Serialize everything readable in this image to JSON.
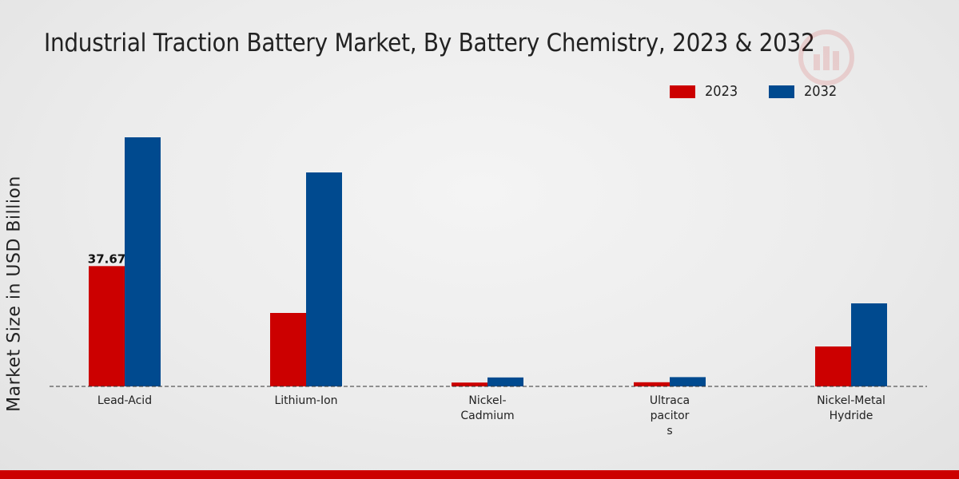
{
  "colors": {
    "series_2023": "#cc0000",
    "series_2032": "#004a8f",
    "footer": "#cc0000"
  },
  "watermark_icon": "bar-chart-logo-icon",
  "chart_data": {
    "type": "bar",
    "title": "Industrial Traction Battery Market, By Battery Chemistry, 2023 & 2032",
    "xlabel": "",
    "ylabel": "Market Size in USD Billion",
    "categories": [
      "Lead-Acid",
      "Lithium-Ion",
      "Nickel-Cadmium",
      "Ultracapacitors",
      "Nickel-Metal Hydride"
    ],
    "category_label_lines": [
      [
        "Lead-Acid"
      ],
      [
        "Lithium-Ion"
      ],
      [
        "Nickel-",
        "Cadmium"
      ],
      [
        "Ultraca",
        "pacitor",
        "s"
      ],
      [
        "Nickel-Metal",
        "Hydride"
      ]
    ],
    "series": [
      {
        "name": "2023",
        "values": [
          37.67,
          23.0,
          1.2,
          1.3,
          12.5
        ]
      },
      {
        "name": "2032",
        "values": [
          78.0,
          67.0,
          2.8,
          2.9,
          26.0
        ]
      }
    ],
    "data_labels": [
      {
        "series": 0,
        "index": 0,
        "text": "37.67"
      }
    ],
    "ylim": [
      0,
      90
    ],
    "legend_position": "top-right",
    "grid": false
  }
}
